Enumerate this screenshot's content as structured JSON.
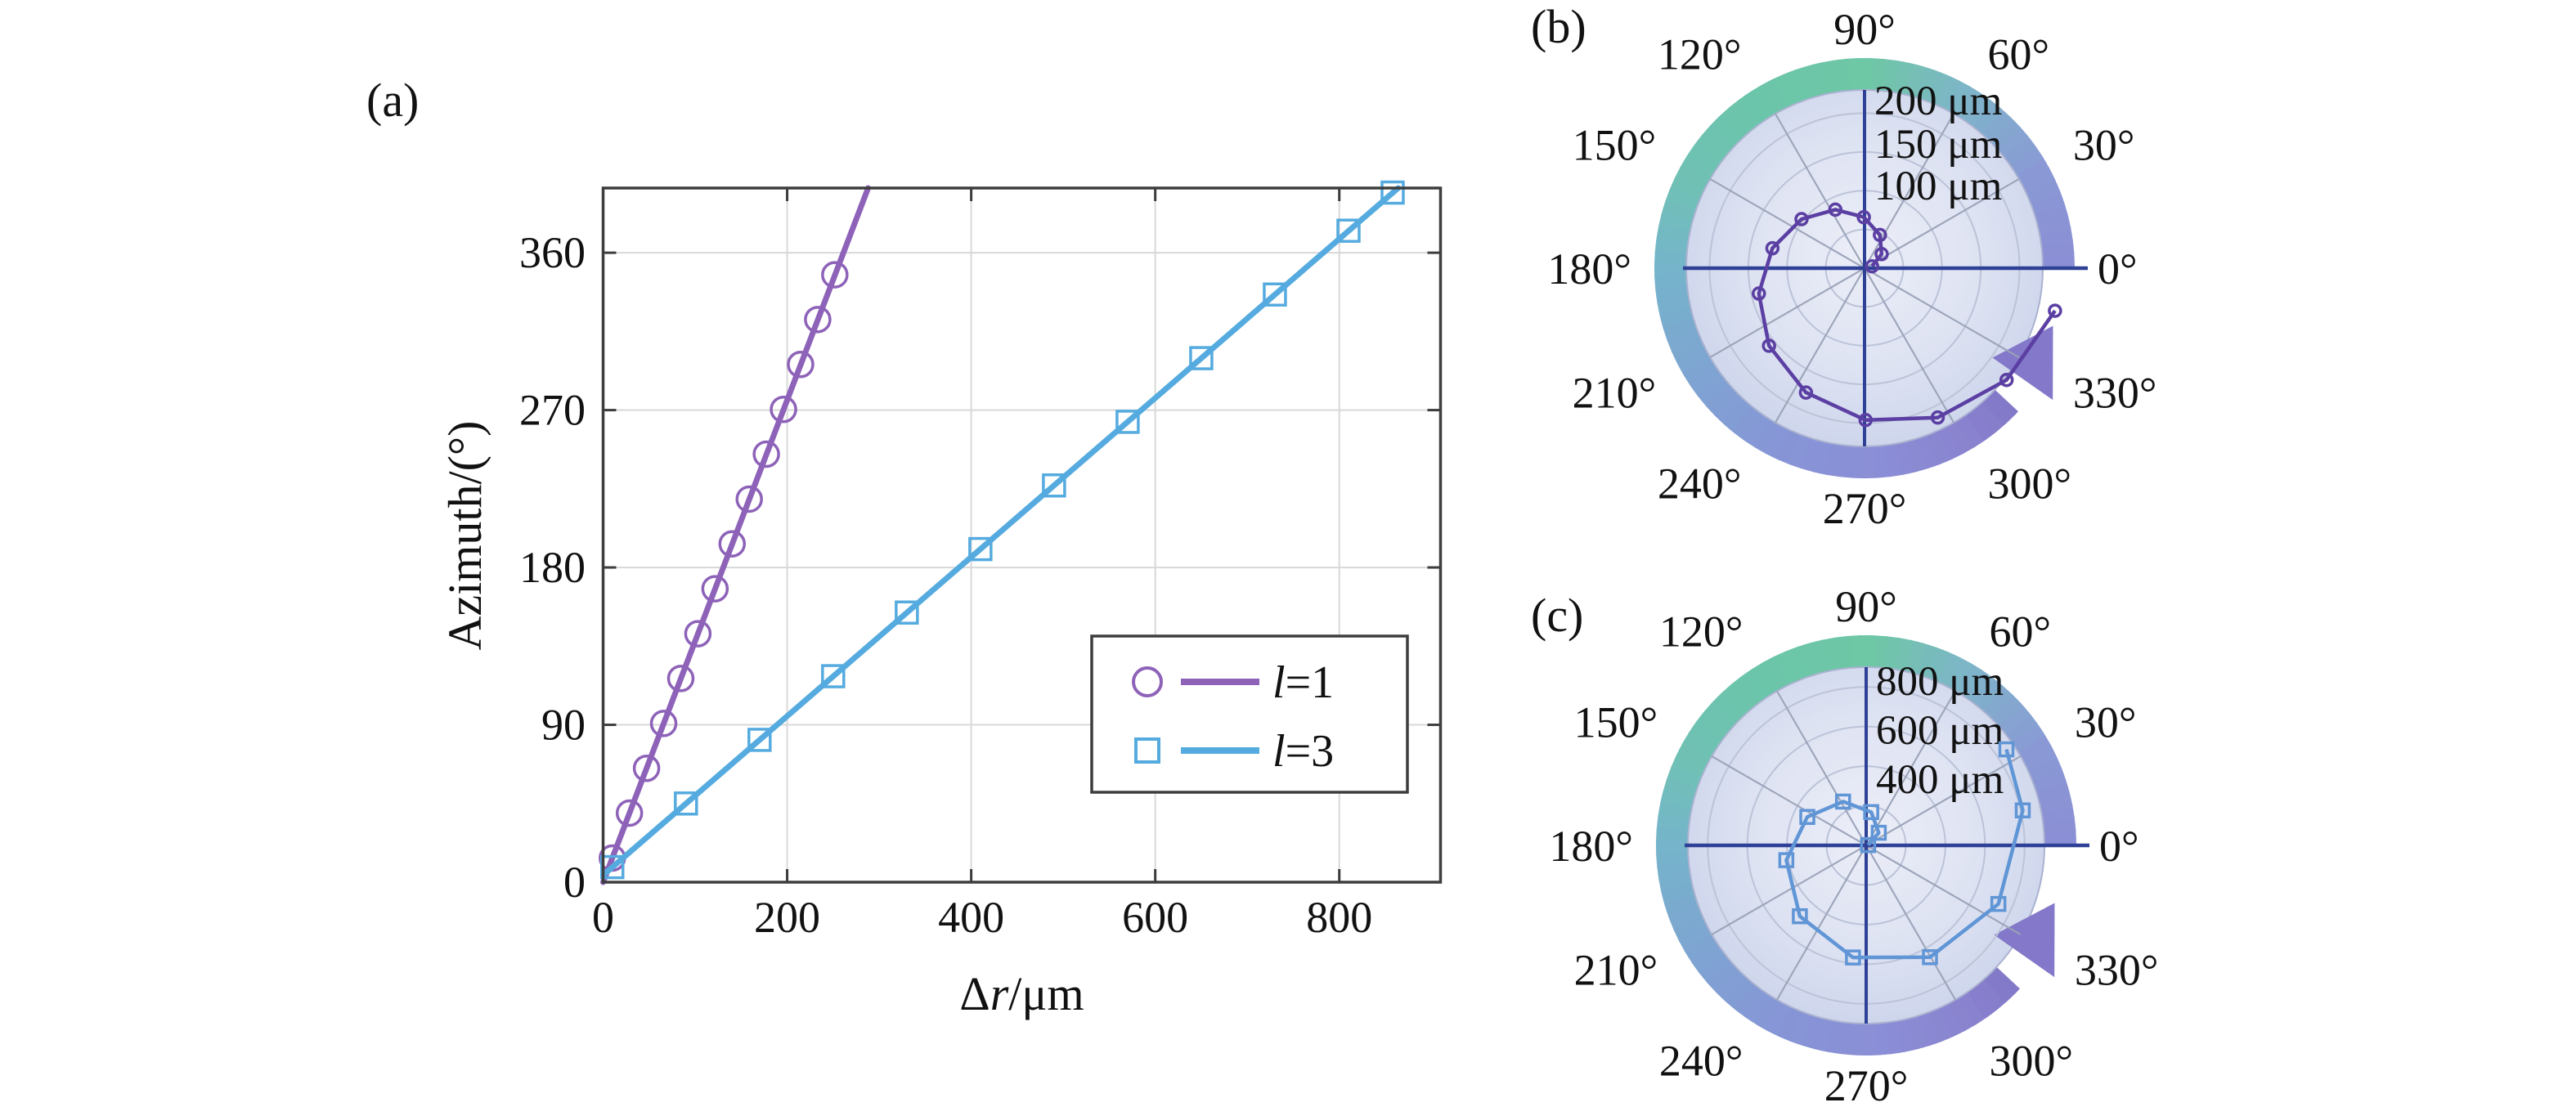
{
  "panels": {
    "a": {
      "label": "(a)"
    },
    "b": {
      "label": "(b)"
    },
    "c": {
      "label": "(c)"
    }
  },
  "chart_data": [
    {
      "id": "a",
      "type": "line",
      "xlabel": "Δr/μm",
      "xlabel_segments": [
        [
          "Δ",
          "normal"
        ],
        [
          "r",
          "italic"
        ],
        [
          "/μm",
          "normal"
        ]
      ],
      "ylabel": "Azimuth/(°)",
      "xlim": [
        0,
        910
      ],
      "ylim": [
        0,
        397
      ],
      "x_ticks": [
        "0",
        "200",
        "400",
        "600",
        "800"
      ],
      "x_tick_values": [
        0,
        200,
        400,
        600,
        800
      ],
      "y_ticks": [
        "0",
        "90",
        "180",
        "270",
        "360"
      ],
      "y_tick_values": [
        0,
        90,
        180,
        270,
        360
      ],
      "grid": true,
      "legend_position": "lower-right",
      "series": [
        {
          "name": "l=1",
          "name_segments": [
            [
              "l",
              "italic"
            ],
            [
              "=1",
              "normal"
            ]
          ],
          "color": "#8d62b8",
          "marker": "circle",
          "trend_line": [
            [
              0,
              0
            ],
            [
              288,
              397
            ]
          ],
          "points": [
            [
              10,
              13.8
            ],
            [
              28.6,
              39.5
            ],
            [
              47.2,
              65.1
            ],
            [
              65.8,
              90.8
            ],
            [
              84.4,
              116.5
            ],
            [
              103,
              142.1
            ],
            [
              121.6,
              167.8
            ],
            [
              140.2,
              193.5
            ],
            [
              158.8,
              219.1
            ],
            [
              177.4,
              244.8
            ],
            [
              196,
              270.4
            ],
            [
              214.6,
              296.1
            ],
            [
              233.2,
              321.8
            ],
            [
              251.8,
              347.4
            ]
          ]
        },
        {
          "name": "l=3",
          "name_segments": [
            [
              "l",
              "italic"
            ],
            [
              "=3",
              "normal"
            ]
          ],
          "color": "#55abdf",
          "marker": "square",
          "trend_line": [
            [
              0,
              4
            ],
            [
              864,
              397
            ]
          ],
          "points": [
            [
              10,
              8.6
            ],
            [
              90,
              45.0
            ],
            [
              170,
              81.4
            ],
            [
              250,
              117.8
            ],
            [
              330,
              154.2
            ],
            [
              410,
              190.5
            ],
            [
              490,
              226.9
            ],
            [
              570,
              263.3
            ],
            [
              650,
              299.7
            ],
            [
              730,
              336.1
            ],
            [
              810,
              372.6
            ],
            [
              858,
              394.4
            ]
          ]
        }
      ]
    },
    {
      "id": "b",
      "type": "polar-line",
      "series": "l=1",
      "color": "#5b3fa3",
      "marker": "circle",
      "r_max": 230,
      "r_unit": "μm",
      "r_gridlines": [
        50,
        100,
        150,
        200
      ],
      "r_labels": [
        "200 μm",
        "150 μm",
        "100 μm"
      ],
      "theta_labels": [
        "0°",
        "30°",
        "60°",
        "90°",
        "120°",
        "150°",
        "180°",
        "210°",
        "240°",
        "270°",
        "300°",
        "330°"
      ],
      "theta_label_values": [
        0,
        30,
        60,
        90,
        120,
        150,
        180,
        210,
        240,
        270,
        300,
        330
      ],
      "points_theta_r": [
        [
          13.8,
          10
        ],
        [
          39.5,
          28.6
        ],
        [
          65.1,
          47.2
        ],
        [
          90.8,
          65.8
        ],
        [
          116.5,
          84.4
        ],
        [
          142.1,
          103
        ],
        [
          167.8,
          121.6
        ],
        [
          193.5,
          140.2
        ],
        [
          219.1,
          158.8
        ],
        [
          244.8,
          177.4
        ],
        [
          270.4,
          196
        ],
        [
          296.1,
          214.6
        ],
        [
          321.8,
          233.2
        ],
        [
          347.4,
          251.8
        ]
      ],
      "ring_arrow": {
        "start_deg": 0,
        "end_deg": 317,
        "tip_deg": 343,
        "direction": "counterclockwise",
        "gradient": [
          [
            0,
            "#8b8ed5"
          ],
          [
            30,
            "#8a99d5"
          ],
          [
            60,
            "#7eb5c9"
          ],
          [
            90,
            "#6ec7a5"
          ],
          [
            125,
            "#6bc5aa"
          ],
          [
            155,
            "#70c1b5"
          ],
          [
            180,
            "#75b4ca"
          ],
          [
            215,
            "#7fa3d2"
          ],
          [
            245,
            "#8695d6"
          ],
          [
            275,
            "#8a8ed6"
          ],
          [
            300,
            "#8a84cf"
          ],
          [
            317,
            "#8378c9"
          ]
        ]
      }
    },
    {
      "id": "c",
      "type": "polar-line",
      "series": "l=3",
      "color": "#6095d6",
      "marker": "square",
      "r_max": 900,
      "r_unit": "μm",
      "r_gridlines": [
        200,
        400,
        600,
        800
      ],
      "r_labels": [
        "800 μm",
        "600 μm",
        "400 μm"
      ],
      "theta_labels": [
        "0°",
        "30°",
        "60°",
        "90°",
        "120°",
        "150°",
        "180°",
        "210°",
        "240°",
        "270°",
        "300°",
        "330°"
      ],
      "theta_label_values": [
        0,
        30,
        60,
        90,
        120,
        150,
        180,
        210,
        240,
        270,
        300,
        330
      ],
      "points_theta_r": [
        [
          8.6,
          10
        ],
        [
          45,
          90
        ],
        [
          81.4,
          170
        ],
        [
          117.8,
          250
        ],
        [
          154.2,
          330
        ],
        [
          190.5,
          410
        ],
        [
          226.9,
          490
        ],
        [
          263.3,
          570
        ],
        [
          299.7,
          650
        ],
        [
          336.1,
          730
        ],
        [
          372.6,
          810
        ],
        [
          394.4,
          858
        ]
      ],
      "ring_arrow": {
        "start_deg": 0,
        "end_deg": 317,
        "tip_deg": 343,
        "direction": "counterclockwise",
        "gradient": [
          [
            0,
            "#8b8ed5"
          ],
          [
            30,
            "#8a99d5"
          ],
          [
            60,
            "#7eb5c9"
          ],
          [
            90,
            "#6ec7a5"
          ],
          [
            125,
            "#6bc5aa"
          ],
          [
            155,
            "#70c1b5"
          ],
          [
            180,
            "#75b4ca"
          ],
          [
            215,
            "#7fa3d2"
          ],
          [
            245,
            "#8695d6"
          ],
          [
            275,
            "#8a8ed6"
          ],
          [
            300,
            "#8a84cf"
          ],
          [
            317,
            "#8378c9"
          ]
        ]
      }
    }
  ],
  "colors": {
    "background": "#ffffff",
    "axis_blue": "#2e4197",
    "spoke_gray": "#9aa2b8",
    "circle_gray": "#bcc3d8",
    "grid_gray": "#d8d8d8",
    "spine": "#3d3d3d",
    "disc_center": "#eceef8",
    "disc_mid": "#dde2f2",
    "disc_edge": "#c8d1ea",
    "disc_stroke": "#aab2d0"
  }
}
